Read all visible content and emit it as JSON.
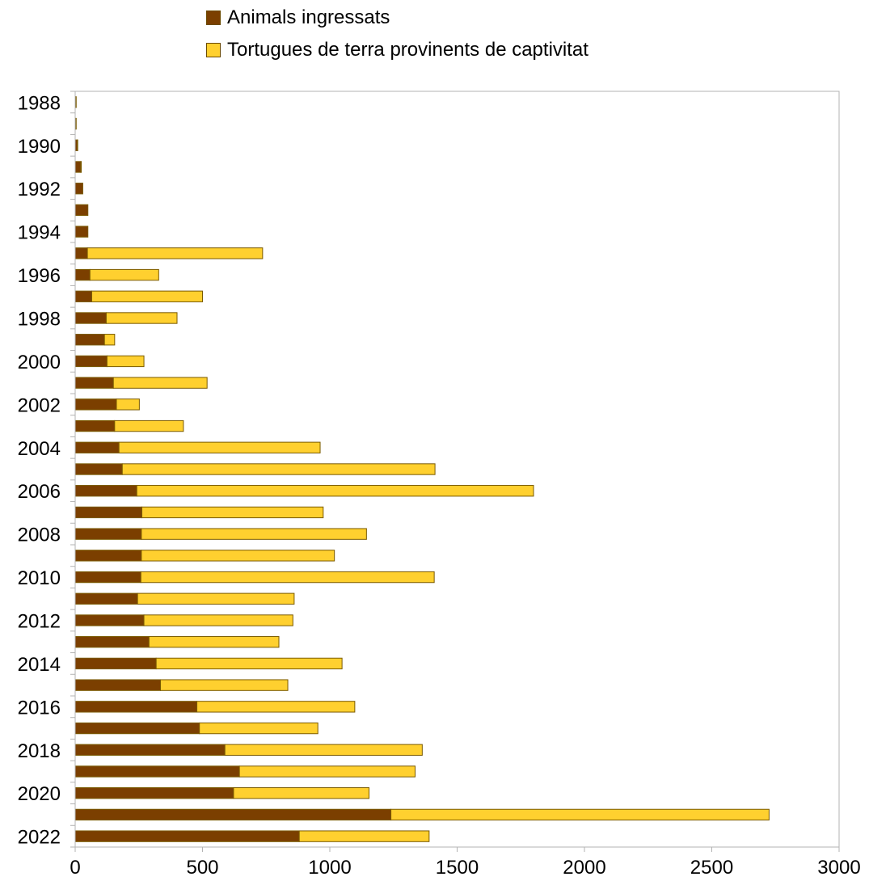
{
  "chart_data": {
    "type": "bar",
    "orientation": "horizontal",
    "stacked": true,
    "title": "",
    "xlabel": "",
    "ylabel": "",
    "xlim": [
      0,
      3000
    ],
    "x_ticks": [
      "0",
      "500",
      "1000",
      "1500",
      "2000",
      "2500",
      "3000"
    ],
    "y_tick_labels": [
      "1988",
      "1990",
      "1992",
      "1994",
      "1996",
      "1998",
      "2000",
      "2002",
      "2004",
      "2006",
      "2008",
      "2010",
      "2012",
      "2014",
      "2016",
      "2018",
      "2020",
      "2022"
    ],
    "grid": false,
    "legend_position": "top",
    "categories": [
      "1988",
      "1989",
      "1990",
      "1991",
      "1992",
      "1993",
      "1994",
      "1995",
      "1996",
      "1997",
      "1998",
      "1999",
      "2000",
      "2001",
      "2002",
      "2003",
      "2004",
      "2005",
      "2006",
      "2007",
      "2008",
      "2009",
      "2010",
      "2011",
      "2012",
      "2013",
      "2014",
      "2015",
      "2016",
      "2017",
      "2018",
      "2019",
      "2020",
      "2021",
      "2022"
    ],
    "series": [
      {
        "name": "Animals ingressats",
        "color": "#7b3f00",
        "values": [
          2,
          2,
          8,
          22,
          30,
          50,
          50,
          48,
          58,
          65,
          122,
          115,
          125,
          150,
          162,
          155,
          172,
          185,
          242,
          262,
          260,
          260,
          258,
          245,
          270,
          290,
          318,
          335,
          478,
          488,
          588,
          645,
          622,
          1240,
          880
        ]
      },
      {
        "name": "Tortugues de terra provinents de captivitat",
        "color": "#ffd02f",
        "values": [
          2,
          2,
          2,
          2,
          0,
          0,
          0,
          688,
          270,
          435,
          278,
          40,
          145,
          368,
          90,
          270,
          790,
          1228,
          1558,
          712,
          884,
          758,
          1152,
          615,
          585,
          510,
          730,
          500,
          620,
          465,
          775,
          690,
          532,
          1485,
          510
        ]
      }
    ]
  }
}
